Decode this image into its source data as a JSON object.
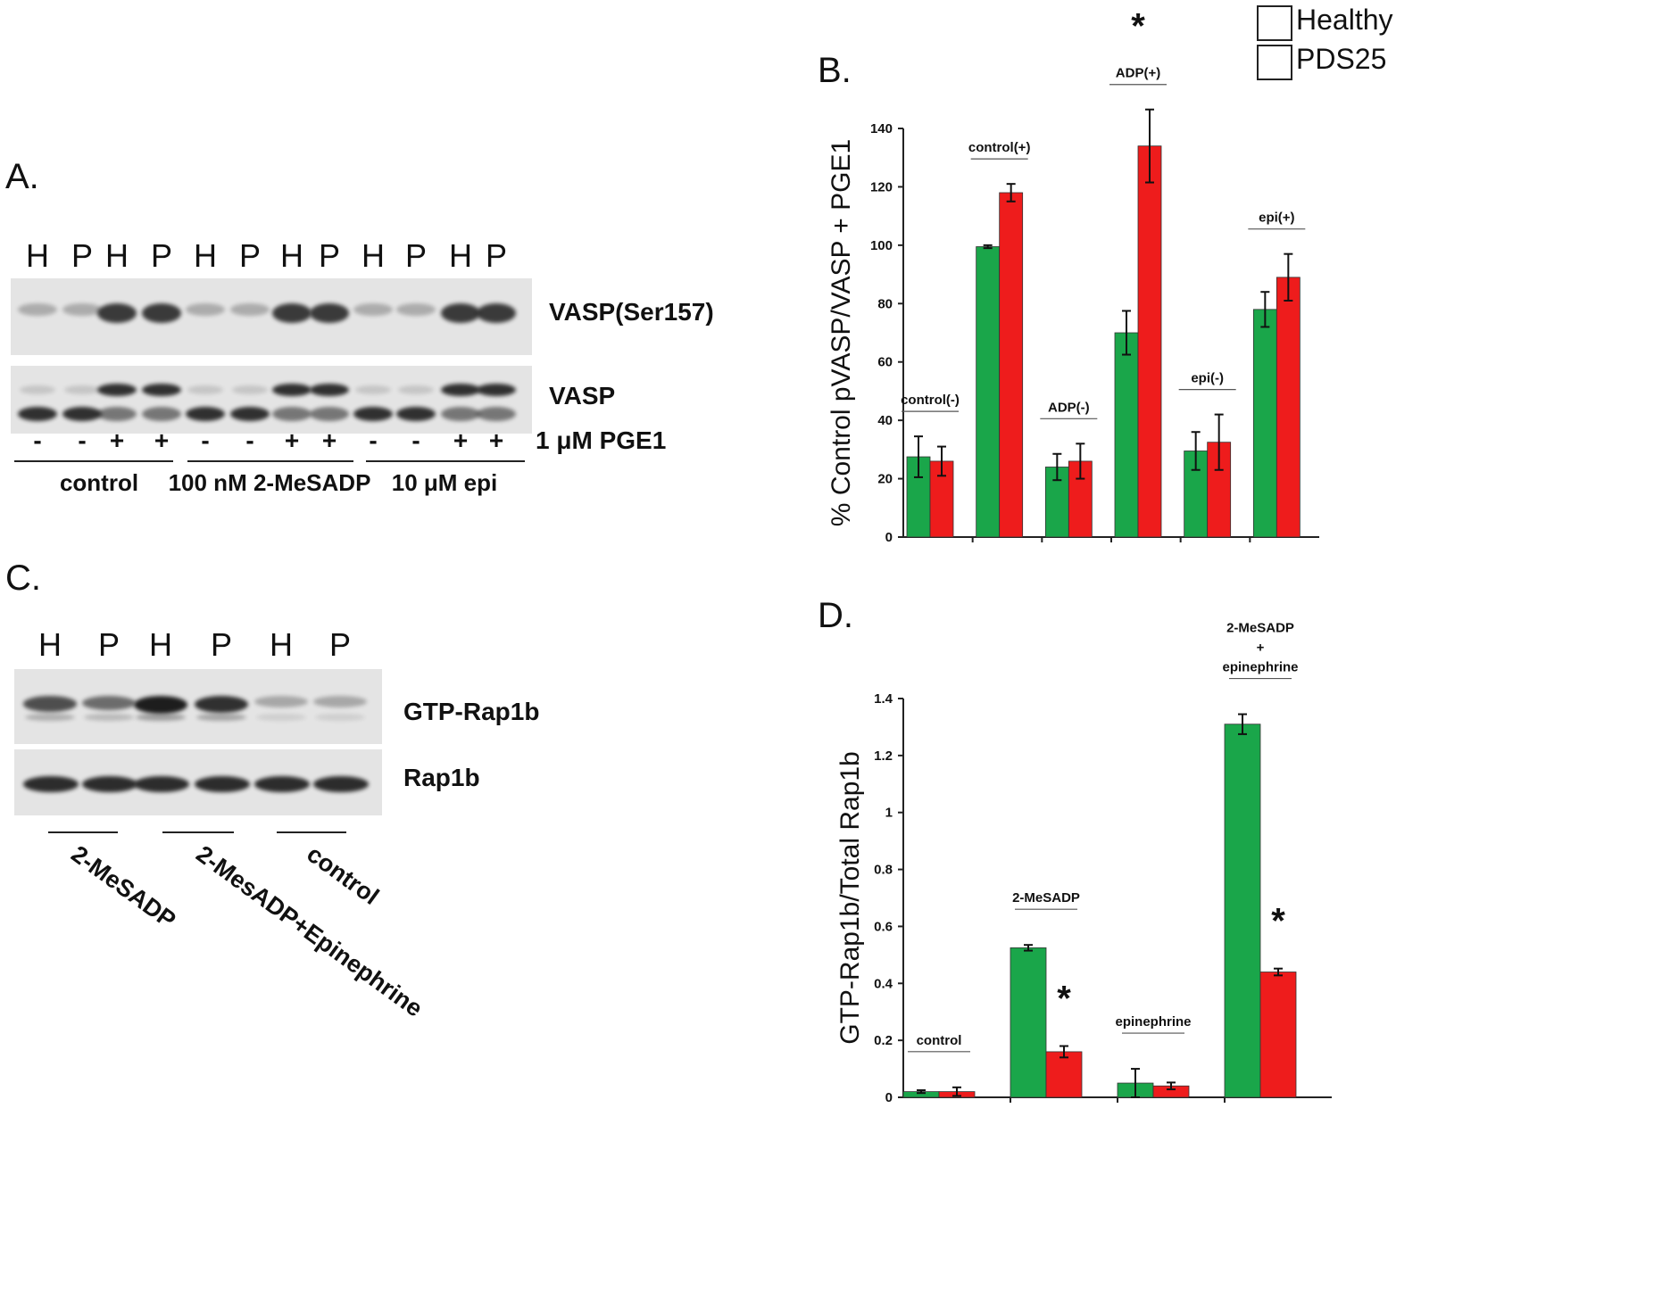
{
  "legend": [
    {
      "label": "Healthy",
      "color": "#1aa64a"
    },
    {
      "label": "PDS25",
      "color": "#ee1c1c"
    }
  ],
  "panelA": {
    "label": "A.",
    "lanes": [
      "H",
      "P",
      "H",
      "P",
      "H",
      "P",
      "H",
      "P",
      "H",
      "P",
      "H",
      "P"
    ],
    "blot_labels": {
      "top": "VASP(Ser157)",
      "bottom": "VASP"
    },
    "signs": [
      "-",
      "-",
      "+",
      "+",
      "-",
      "-",
      "+",
      "+",
      "-",
      "-",
      "+",
      "+"
    ],
    "treatment_label": "1 μM PGE1",
    "groups": [
      "control",
      "100 nM 2-MeSADP",
      "10 μM epi"
    ]
  },
  "panelC": {
    "label": "C.",
    "lanes": [
      "H",
      "P",
      "H",
      "P",
      "H",
      "P"
    ],
    "blot_labels": {
      "top": "GTP-Rap1b",
      "bottom": "Rap1b"
    },
    "groups": [
      "2-MeSADP",
      "2-MesADP+Epinephrine",
      "control"
    ]
  },
  "chart_data": [
    {
      "panel": "B.",
      "type": "bar",
      "ylabel": "% Control pVASP/VASP + PGE1",
      "ylim": [
        0,
        140
      ],
      "yticks": [
        "0",
        "20",
        "40",
        "60",
        "80",
        "100",
        "120",
        "140"
      ],
      "categories": [
        "control(-)",
        "control(+)",
        "ADP(-)",
        "ADP(+)",
        "epi(-)",
        "epi(+)"
      ],
      "series": [
        {
          "name": "Healthy",
          "values": [
            27.5,
            99.5,
            24,
            70,
            29.5,
            78
          ],
          "errors": [
            7,
            0.5,
            4.5,
            7.5,
            6.5,
            6
          ]
        },
        {
          "name": "PDS25",
          "values": [
            26,
            118,
            26,
            134,
            32.5,
            89
          ],
          "errors": [
            5,
            3,
            6,
            12.5,
            9.5,
            8
          ]
        }
      ],
      "annotations": [
        {
          "category": "ADP(+)",
          "text": "*"
        }
      ]
    },
    {
      "panel": "D.",
      "type": "bar",
      "ylabel": "GTP-Rap1b/Total Rap1b",
      "ylim": [
        0,
        1.4
      ],
      "yticks": [
        "0",
        "0.2",
        "0.4",
        "0.6",
        "0.8",
        "1",
        "1.2",
        "1.4"
      ],
      "categories": [
        "control",
        "2-MeSADP",
        "epinephrine",
        "2-MeSADP + epinephrine"
      ],
      "category_lines": [
        [
          "control"
        ],
        [
          "2-MeSADP"
        ],
        [
          "epinephrine"
        ],
        [
          "2-MeSADP",
          "+",
          "epinephrine"
        ]
      ],
      "series": [
        {
          "name": "Healthy",
          "values": [
            0.02,
            0.525,
            0.05,
            1.31
          ],
          "errors": [
            0.005,
            0.01,
            0.05,
            0.035
          ]
        },
        {
          "name": "PDS25",
          "values": [
            0.02,
            0.16,
            0.04,
            0.44
          ],
          "errors": [
            0.015,
            0.02,
            0.012,
            0.012
          ]
        }
      ],
      "annotations": [
        {
          "category": "2-MeSADP",
          "text": "*"
        },
        {
          "category": "2-MeSADP + epinephrine",
          "text": "*"
        }
      ]
    }
  ]
}
